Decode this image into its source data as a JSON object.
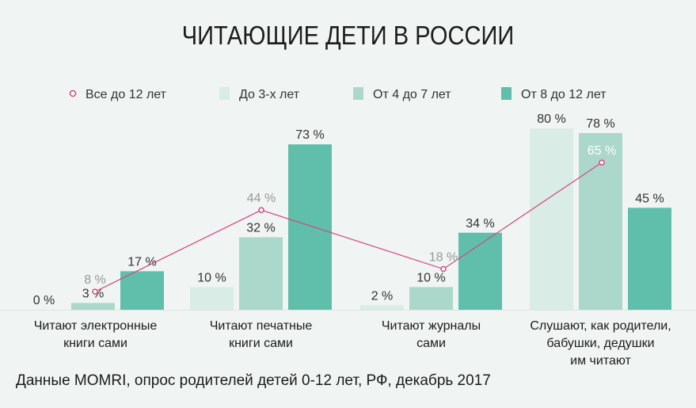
{
  "chart_data": {
    "type": "bar",
    "title": "ЧИТАЮЩИЕ ДЕТИ В РОССИИ",
    "categories": [
      "Читают электронные\nкниги сами",
      "Читают печатные\nкниги сами",
      "Читают журналы\nсами",
      "Слушают, как родители,\nбабушки, дедушки\nим читают"
    ],
    "series": [
      {
        "name": "До 3-х лет",
        "color": "#d9ece6",
        "values": [
          0,
          10,
          2,
          80
        ]
      },
      {
        "name": "От 4 до 7 лет",
        "color": "#acd8cb",
        "values": [
          3,
          32,
          10,
          78
        ]
      },
      {
        "name": "От 8 до 12 лет",
        "color": "#5fbfaa",
        "values": [
          17,
          73,
          34,
          45
        ]
      }
    ],
    "line_series": {
      "name": "Все до 12 лет",
      "color": "#d6457f",
      "values": [
        8,
        44,
        18,
        65
      ]
    },
    "value_suffix": " %",
    "ylim": [
      0,
      100
    ],
    "grid": false,
    "legend_position": "top"
  },
  "source": "Данные MOMRI, опрос родителей детей 0-12 лет, РФ, декабрь 2017"
}
